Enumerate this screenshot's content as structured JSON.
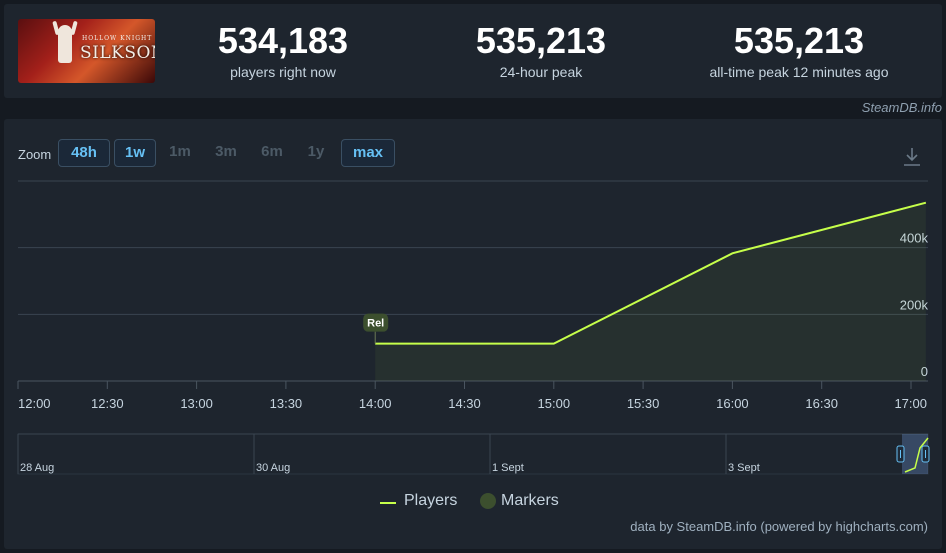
{
  "game": {
    "title_art": "SILKSONG",
    "subtitle_art": "HOLLOW KNIGHT"
  },
  "stats": [
    {
      "value": "534,183",
      "label": "players right now"
    },
    {
      "value": "535,213",
      "label": "24-hour peak"
    },
    {
      "value": "535,213",
      "label": "all-time peak 12 minutes ago"
    }
  ],
  "credit_top": "SteamDB.info",
  "zoom": {
    "label": "Zoom",
    "buttons": [
      {
        "label": "48h",
        "active": true
      },
      {
        "label": "1w",
        "active": true
      },
      {
        "label": "1m",
        "active": false
      },
      {
        "label": "3m",
        "active": false
      },
      {
        "label": "6m",
        "active": false
      },
      {
        "label": "1y",
        "active": false
      },
      {
        "label": "max",
        "active": true
      }
    ]
  },
  "download_icon": "download-icon",
  "colors": {
    "players_line": "#c6ff4a",
    "marker": "#3c4f2e",
    "accent": "#66c0f4"
  },
  "chart_data": {
    "type": "line",
    "x_ticks": [
      "12:00",
      "12:30",
      "13:00",
      "13:30",
      "14:00",
      "14:30",
      "15:00",
      "15:30",
      "16:00",
      "16:30",
      "17:00"
    ],
    "y_ticks": [
      0,
      200000,
      400000
    ],
    "y_tick_labels": [
      "0",
      "200k",
      "400k"
    ],
    "ylim": [
      0,
      600000
    ],
    "xlim_hours": [
      12,
      17
    ],
    "grid": true,
    "legend_position": "bottom",
    "series": [
      {
        "name": "Players",
        "points": [
          {
            "x": "14:00",
            "y": 112000
          },
          {
            "x": "15:00",
            "y": 112000
          },
          {
            "x": "16:00",
            "y": 383000
          },
          {
            "x": "17:05",
            "y": 535000
          }
        ]
      }
    ],
    "markers": [
      {
        "x": "14:00",
        "label": "Rel"
      }
    ],
    "navigator": {
      "labels": [
        "28 Aug",
        "30 Aug",
        "1 Sept",
        "3 Sept"
      ]
    }
  },
  "legend": {
    "players_label": "Players",
    "markers_label": "Markers"
  },
  "credit_bottom": "data by SteamDB.info (powered by highcharts.com)"
}
